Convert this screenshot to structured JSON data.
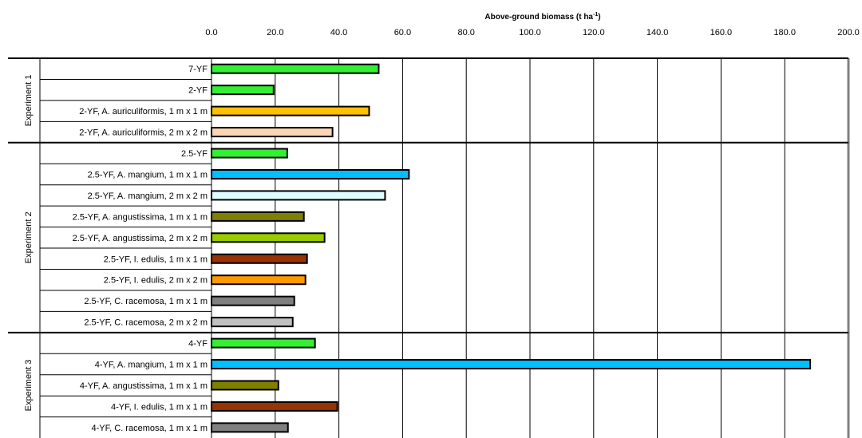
{
  "chart_data": {
    "type": "bar",
    "orientation": "horizontal",
    "title": "Above-ground biomass (t ha",
    "title_superscript": "-1",
    "title_suffix": ")",
    "xlim": [
      0,
      200
    ],
    "x_ticks": [
      "0.0",
      "20.0",
      "40.0",
      "60.0",
      "80.0",
      "100.0",
      "120.0",
      "140.0",
      "160.0",
      "180.0",
      "200.0"
    ],
    "x_tick_values": [
      0,
      20,
      40,
      60,
      80,
      100,
      120,
      140,
      160,
      180,
      200
    ],
    "grid": true,
    "axis_position": "top",
    "groups": [
      {
        "label": "Experiment 1",
        "bars": [
          {
            "category": "7-YF",
            "value": 52.5,
            "color": "#33ee33"
          },
          {
            "category": "2-YF",
            "value": 19.5,
            "color": "#33ee33"
          },
          {
            "category": "2-YF, A. auriculiformis, 1 m x 1 m",
            "value": 49.5,
            "color": "#ffc000"
          },
          {
            "category": "2-YF, A. auriculiformis, 2 m x 2 m",
            "value": 38.0,
            "color": "#fcd5b4"
          }
        ]
      },
      {
        "label": "Experiment 2",
        "bars": [
          {
            "category": "2.5-YF",
            "value": 23.8,
            "color": "#33ee33"
          },
          {
            "category": "2.5-YF, A. mangium, 1 m x 1 m",
            "value": 62.0,
            "color": "#00bfff"
          },
          {
            "category": "2.5-YF, A. mangium, 2 m x 2 m",
            "value": 54.5,
            "color": "#dffcff"
          },
          {
            "category": "2.5-YF, A. angustissima, 1 m x 1 m",
            "value": 29.0,
            "color": "#808000"
          },
          {
            "category": "2.5-YF, A. angustissima, 2 m x 2 m",
            "value": 35.5,
            "color": "#99cc00"
          },
          {
            "category": "2.5-YF, I. edulis, 1 m x 1 m",
            "value": 30.0,
            "color": "#993300"
          },
          {
            "category": "2.5-YF, I. edulis, 2 m x 2 m",
            "value": 29.5,
            "color": "#ff9900"
          },
          {
            "category": "2.5-YF, C. racemosa, 1 m x 1 m",
            "value": 26.0,
            "color": "#808080"
          },
          {
            "category": "2.5-YF, C. racemosa, 2 m x 2 m",
            "value": 25.5,
            "color": "#c0c0c0"
          }
        ]
      },
      {
        "label": "Experiment 3",
        "bars": [
          {
            "category": "4-YF",
            "value": 32.5,
            "color": "#33ee33"
          },
          {
            "category": "4-YF, A. mangium, 1 m x 1 m",
            "value": 188.0,
            "color": "#00bfff"
          },
          {
            "category": "4-YF, A. angustissima, 1 m x 1 m",
            "value": 21.0,
            "color": "#808000"
          },
          {
            "category": "4-YF, I. edulis, 1 m x 1 m",
            "value": 39.5,
            "color": "#993300"
          },
          {
            "category": "4-YF, C. racemosa, 1 m x 1 m",
            "value": 24.0,
            "color": "#808080"
          }
        ]
      }
    ]
  }
}
